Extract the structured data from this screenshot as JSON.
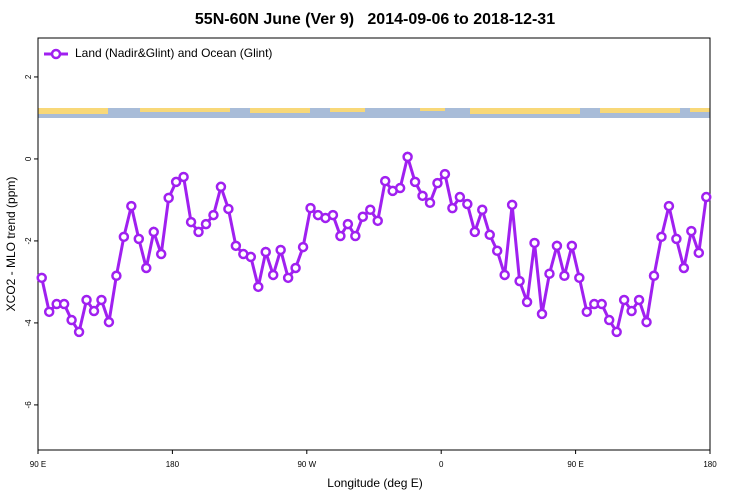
{
  "chart_data": {
    "type": "line",
    "title": "55N-60N June (Ver 9)   2014-09-06 to 2018-12-31",
    "xlabel": "Longitude (deg E)",
    "ylabel": "XCO2 - MLO trend (ppm)",
    "legend": "top-left",
    "xlim": [
      90,
      540
    ],
    "ylim": [
      -7.1,
      2.95
    ],
    "xticks": [
      {
        "value": 90,
        "label": "90 E"
      },
      {
        "value": 180,
        "label": "180"
      },
      {
        "value": 270,
        "label": "90 W"
      },
      {
        "value": 360,
        "label": "0"
      },
      {
        "value": 450,
        "label": "90 E"
      },
      {
        "value": 540,
        "label": "180"
      }
    ],
    "yticks": [
      -6,
      -4,
      -2,
      0,
      2
    ],
    "x": [
      92.5,
      97.5,
      102.5,
      107.5,
      112.5,
      117.5,
      122.5,
      127.5,
      132.5,
      137.5,
      142.5,
      147.5,
      152.5,
      157.5,
      162.5,
      167.5,
      172.5,
      177.5,
      182.5,
      187.5,
      192.5,
      197.5,
      202.5,
      207.5,
      212.5,
      217.5,
      222.5,
      227.5,
      232.5,
      237.5,
      242.5,
      247.5,
      252.5,
      257.5,
      262.5,
      267.5,
      272.5,
      277.5,
      282.5,
      287.5,
      292.5,
      297.5,
      302.5,
      307.5,
      312.5,
      317.5,
      322.5,
      327.5,
      332.5,
      337.5,
      342.5,
      347.5,
      352.5,
      357.5,
      362.5,
      367.5,
      372.5,
      377.5,
      382.5,
      387.5,
      392.5,
      397.5,
      402.5,
      407.5,
      412.5,
      417.5,
      422.5,
      427.5,
      432.5,
      437.5,
      442.5,
      447.5,
      452.5,
      457.5,
      462.5,
      467.5,
      472.5,
      477.5,
      482.5,
      487.5,
      492.5,
      497.5,
      502.5,
      507.5,
      512.5,
      517.5,
      522.5,
      527.5,
      532.5,
      537.5
    ],
    "series": [
      {
        "name": "Land (Nadir&Glint) and Ocean (Glint)",
        "color": "#a020f0",
        "values": [
          -2.9,
          -3.73,
          -3.54,
          -3.54,
          -3.93,
          -4.22,
          -3.44,
          -3.71,
          -3.44,
          -3.98,
          -2.85,
          -1.9,
          -1.15,
          -1.95,
          -2.66,
          -1.78,
          -2.32,
          -0.95,
          -0.56,
          -0.44,
          -1.54,
          -1.78,
          -1.59,
          -1.37,
          -0.68,
          -1.22,
          -2.12,
          -2.32,
          -2.39,
          -3.12,
          -2.27,
          -2.83,
          -2.22,
          -2.9,
          -2.66,
          -2.15,
          -1.2,
          -1.37,
          -1.44,
          -1.37,
          -1.88,
          -1.59,
          -1.88,
          -1.41,
          -1.24,
          -1.51,
          -0.54,
          -0.78,
          -0.71,
          0.05,
          -0.56,
          -0.9,
          -1.07,
          -0.59,
          -0.37,
          -1.2,
          -0.93,
          -1.1,
          -1.78,
          -1.24,
          -1.85,
          -2.24,
          -2.83,
          -1.12,
          -2.98,
          -3.49,
          -2.05,
          -3.78,
          -2.8,
          -2.12,
          -2.85,
          -2.12,
          -2.9,
          -3.73,
          -3.54,
          -3.54,
          -3.93,
          -4.22,
          -3.44,
          -3.71,
          -3.44,
          -3.98,
          -2.85,
          -1.9,
          -1.15,
          -1.95,
          -2.66,
          -1.76,
          -2.29,
          -0.93
        ]
      }
    ]
  }
}
